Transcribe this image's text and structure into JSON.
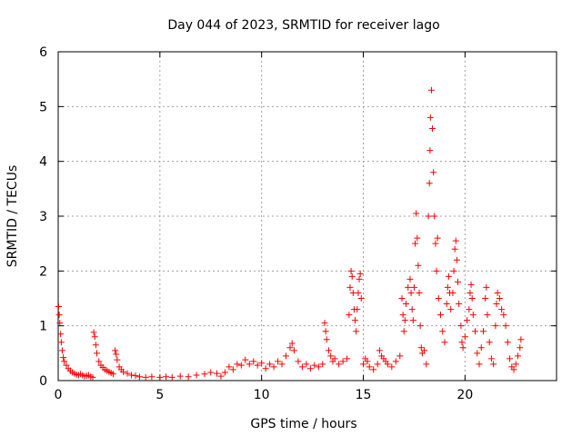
{
  "chart_data": {
    "type": "scatter",
    "title": "Day 044 of 2023, SRMTID for receiver lago",
    "xlabel": "GPS time / hours",
    "ylabel": "SRMTID / TECUs",
    "xlim": [
      0,
      24.5
    ],
    "ylim": [
      0,
      6
    ],
    "xticks": [
      0,
      5,
      10,
      15,
      20
    ],
    "yticks": [
      0,
      1,
      2,
      3,
      4,
      5,
      6
    ],
    "xtick_labels": [
      "0",
      "5",
      "10",
      "15",
      "20"
    ],
    "ytick_labels": [
      "0",
      "1",
      "2",
      "3",
      "4",
      "5",
      "6"
    ],
    "grid": true,
    "marker": "+",
    "color": "#ff0000",
    "series": [
      {
        "name": "SRMTID",
        "points": [
          [
            0.02,
            1.35
          ],
          [
            0.05,
            1.2
          ],
          [
            0.08,
            1.05
          ],
          [
            0.12,
            0.85
          ],
          [
            0.15,
            0.7
          ],
          [
            0.2,
            0.55
          ],
          [
            0.25,
            0.42
          ],
          [
            0.3,
            0.35
          ],
          [
            0.4,
            0.28
          ],
          [
            0.5,
            0.22
          ],
          [
            0.6,
            0.18
          ],
          [
            0.7,
            0.15
          ],
          [
            0.8,
            0.13
          ],
          [
            0.9,
            0.11
          ],
          [
            1.0,
            0.1
          ],
          [
            1.1,
            0.12
          ],
          [
            1.2,
            0.1
          ],
          [
            1.3,
            0.08
          ],
          [
            1.4,
            0.09
          ],
          [
            1.5,
            0.1
          ],
          [
            1.6,
            0.07
          ],
          [
            1.7,
            0.06
          ],
          [
            1.75,
            0.88
          ],
          [
            1.8,
            0.8
          ],
          [
            1.85,
            0.65
          ],
          [
            1.9,
            0.5
          ],
          [
            2.0,
            0.35
          ],
          [
            2.1,
            0.28
          ],
          [
            2.2,
            0.24
          ],
          [
            2.3,
            0.2
          ],
          [
            2.4,
            0.18
          ],
          [
            2.5,
            0.16
          ],
          [
            2.6,
            0.14
          ],
          [
            2.7,
            0.12
          ],
          [
            2.8,
            0.55
          ],
          [
            2.85,
            0.48
          ],
          [
            2.9,
            0.38
          ],
          [
            3.0,
            0.25
          ],
          [
            3.1,
            0.2
          ],
          [
            3.2,
            0.16
          ],
          [
            3.4,
            0.13
          ],
          [
            3.6,
            0.1
          ],
          [
            3.8,
            0.09
          ],
          [
            4.0,
            0.07
          ],
          [
            4.3,
            0.06
          ],
          [
            4.6,
            0.07
          ],
          [
            5.0,
            0.06
          ],
          [
            5.3,
            0.07
          ],
          [
            5.6,
            0.06
          ],
          [
            6.0,
            0.08
          ],
          [
            6.4,
            0.07
          ],
          [
            6.8,
            0.1
          ],
          [
            7.2,
            0.12
          ],
          [
            7.5,
            0.15
          ],
          [
            7.8,
            0.13
          ],
          [
            8.0,
            0.08
          ],
          [
            8.2,
            0.15
          ],
          [
            8.4,
            0.25
          ],
          [
            8.6,
            0.2
          ],
          [
            8.8,
            0.3
          ],
          [
            9.0,
            0.28
          ],
          [
            9.2,
            0.38
          ],
          [
            9.4,
            0.3
          ],
          [
            9.6,
            0.35
          ],
          [
            9.8,
            0.28
          ],
          [
            10.0,
            0.32
          ],
          [
            10.2,
            0.22
          ],
          [
            10.4,
            0.3
          ],
          [
            10.6,
            0.25
          ],
          [
            10.8,
            0.35
          ],
          [
            11.0,
            0.3
          ],
          [
            11.2,
            0.45
          ],
          [
            11.4,
            0.6
          ],
          [
            11.5,
            0.68
          ],
          [
            11.6,
            0.55
          ],
          [
            11.8,
            0.35
          ],
          [
            12.0,
            0.25
          ],
          [
            12.2,
            0.3
          ],
          [
            12.4,
            0.22
          ],
          [
            12.6,
            0.28
          ],
          [
            12.8,
            0.25
          ],
          [
            13.0,
            0.3
          ],
          [
            13.1,
            1.05
          ],
          [
            13.15,
            0.9
          ],
          [
            13.2,
            0.75
          ],
          [
            13.3,
            0.55
          ],
          [
            13.4,
            0.45
          ],
          [
            13.5,
            0.35
          ],
          [
            13.6,
            0.4
          ],
          [
            13.8,
            0.3
          ],
          [
            14.0,
            0.35
          ],
          [
            14.2,
            0.4
          ],
          [
            14.3,
            1.2
          ],
          [
            14.35,
            1.7
          ],
          [
            14.4,
            2.0
          ],
          [
            14.45,
            1.9
          ],
          [
            14.5,
            1.6
          ],
          [
            14.55,
            1.3
          ],
          [
            14.6,
            1.1
          ],
          [
            14.65,
            0.9
          ],
          [
            14.7,
            1.3
          ],
          [
            14.75,
            1.6
          ],
          [
            14.8,
            1.85
          ],
          [
            14.85,
            1.95
          ],
          [
            14.9,
            1.5
          ],
          [
            15.0,
            0.3
          ],
          [
            15.1,
            0.4
          ],
          [
            15.2,
            0.35
          ],
          [
            15.3,
            0.25
          ],
          [
            15.5,
            0.2
          ],
          [
            15.7,
            0.3
          ],
          [
            15.8,
            0.55
          ],
          [
            15.9,
            0.45
          ],
          [
            16.0,
            0.4
          ],
          [
            16.1,
            0.35
          ],
          [
            16.2,
            0.3
          ],
          [
            16.4,
            0.25
          ],
          [
            16.6,
            0.35
          ],
          [
            16.8,
            0.45
          ],
          [
            16.9,
            1.5
          ],
          [
            16.95,
            1.2
          ],
          [
            17.0,
            0.9
          ],
          [
            17.05,
            1.1
          ],
          [
            17.1,
            1.4
          ],
          [
            17.2,
            1.7
          ],
          [
            17.3,
            1.85
          ],
          [
            17.35,
            1.6
          ],
          [
            17.4,
            1.3
          ],
          [
            17.45,
            1.1
          ],
          [
            17.5,
            1.7
          ],
          [
            17.55,
            2.5
          ],
          [
            17.6,
            3.05
          ],
          [
            17.65,
            2.6
          ],
          [
            17.7,
            2.1
          ],
          [
            17.75,
            1.6
          ],
          [
            17.8,
            1.0
          ],
          [
            17.85,
            0.6
          ],
          [
            17.9,
            0.5
          ],
          [
            18.0,
            0.55
          ],
          [
            18.1,
            0.3
          ],
          [
            18.2,
            3.0
          ],
          [
            18.25,
            3.6
          ],
          [
            18.28,
            4.2
          ],
          [
            18.3,
            4.8
          ],
          [
            18.35,
            5.3
          ],
          [
            18.4,
            4.6
          ],
          [
            18.45,
            3.8
          ],
          [
            18.5,
            3.0
          ],
          [
            18.55,
            2.5
          ],
          [
            18.6,
            2.0
          ],
          [
            18.65,
            2.6
          ],
          [
            18.7,
            1.5
          ],
          [
            18.8,
            1.2
          ],
          [
            18.9,
            0.9
          ],
          [
            19.0,
            0.7
          ],
          [
            19.1,
            1.4
          ],
          [
            19.15,
            1.7
          ],
          [
            19.2,
            1.9
          ],
          [
            19.25,
            1.6
          ],
          [
            19.3,
            1.3
          ],
          [
            19.4,
            1.6
          ],
          [
            19.45,
            2.0
          ],
          [
            19.5,
            2.4
          ],
          [
            19.55,
            2.55
          ],
          [
            19.6,
            2.2
          ],
          [
            19.65,
            1.8
          ],
          [
            19.7,
            1.4
          ],
          [
            19.8,
            1.0
          ],
          [
            19.85,
            0.7
          ],
          [
            19.9,
            0.6
          ],
          [
            20.0,
            0.8
          ],
          [
            20.1,
            1.1
          ],
          [
            20.2,
            1.3
          ],
          [
            20.25,
            1.6
          ],
          [
            20.3,
            1.75
          ],
          [
            20.35,
            1.5
          ],
          [
            20.4,
            1.2
          ],
          [
            20.5,
            0.9
          ],
          [
            20.6,
            0.5
          ],
          [
            20.7,
            0.3
          ],
          [
            20.8,
            0.6
          ],
          [
            20.9,
            0.9
          ],
          [
            21.0,
            1.5
          ],
          [
            21.05,
            1.7
          ],
          [
            21.1,
            1.2
          ],
          [
            21.2,
            0.7
          ],
          [
            21.3,
            0.4
          ],
          [
            21.4,
            0.3
          ],
          [
            21.5,
            1.0
          ],
          [
            21.55,
            1.4
          ],
          [
            21.6,
            1.6
          ],
          [
            21.7,
            1.5
          ],
          [
            21.8,
            1.3
          ],
          [
            21.9,
            1.2
          ],
          [
            22.0,
            1.0
          ],
          [
            22.1,
            0.7
          ],
          [
            22.2,
            0.4
          ],
          [
            22.3,
            0.25
          ],
          [
            22.4,
            0.2
          ],
          [
            22.5,
            0.3
          ],
          [
            22.6,
            0.45
          ],
          [
            22.7,
            0.6
          ],
          [
            22.75,
            0.75
          ]
        ]
      }
    ]
  }
}
